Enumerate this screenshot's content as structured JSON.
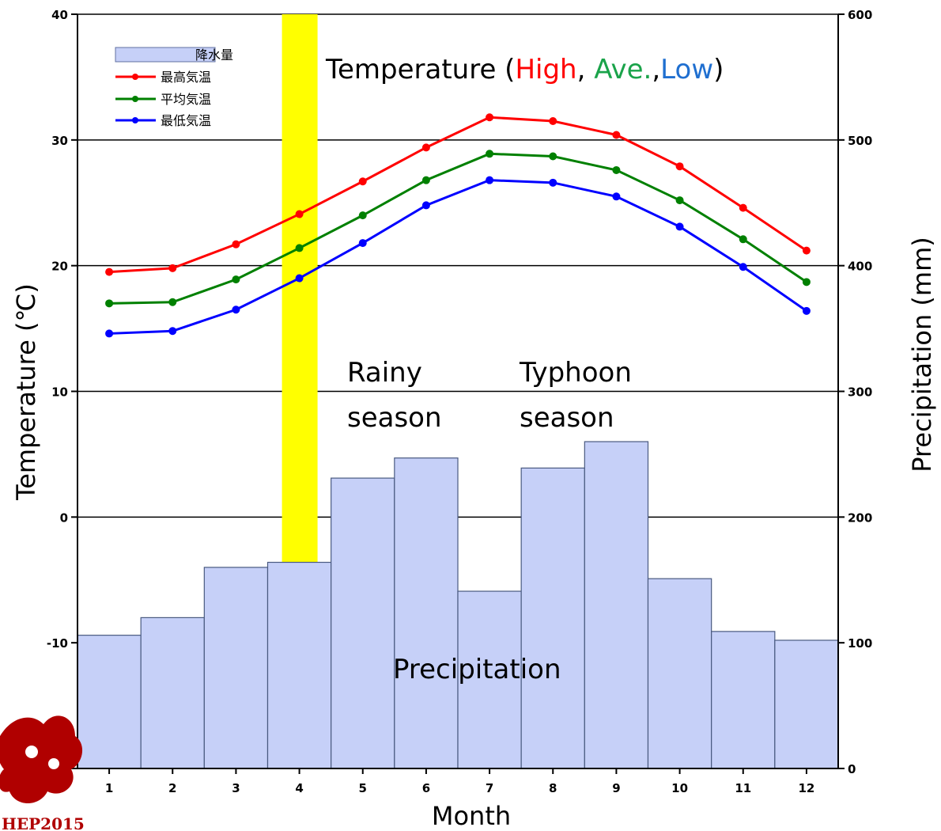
{
  "chart_data": {
    "type": "bar",
    "categories": [
      "1",
      "2",
      "3",
      "4",
      "5",
      "6",
      "7",
      "8",
      "9",
      "10",
      "11",
      "12"
    ],
    "xlabel": "Month",
    "ylabel_left": "Temperature (℃)",
    "ylabel_right": "Precipitation (mm)",
    "ylim_left": [
      -20,
      40
    ],
    "ylim_right": [
      0,
      600
    ],
    "left_ticks": [
      "40",
      "30",
      "20",
      "10",
      "0",
      "-10",
      "-20"
    ],
    "right_ticks": [
      "600",
      "500",
      "400",
      "300",
      "200",
      "100",
      "0"
    ],
    "grid": true,
    "precipitation": {
      "name": "降水量",
      "color": "#c6d0f8",
      "values": [
        106,
        120,
        160,
        164,
        231,
        247,
        141,
        239,
        260,
        151,
        109,
        102
      ]
    },
    "series": [
      {
        "name": "最高気温",
        "color": "#ff0000",
        "values": [
          19.5,
          19.8,
          21.7,
          24.1,
          26.7,
          29.4,
          31.8,
          31.5,
          30.4,
          27.9,
          24.6,
          21.2
        ]
      },
      {
        "name": "平均気温",
        "color": "#008000",
        "values": [
          17.0,
          17.1,
          18.9,
          21.4,
          24.0,
          26.8,
          28.9,
          28.7,
          27.6,
          25.2,
          22.1,
          18.7
        ]
      },
      {
        "name": "最低気温",
        "color": "#0000ff",
        "values": [
          14.6,
          14.8,
          16.5,
          19.0,
          21.8,
          24.8,
          26.8,
          26.6,
          25.5,
          23.1,
          19.9,
          16.4
        ]
      }
    ],
    "highlight": {
      "category": "4",
      "color": "#ffff00"
    },
    "annotations": {
      "temp_title": {
        "prefix": "Temperature (",
        "high": "High",
        "sep1": ", ",
        "ave": "Ave.",
        "sep2": ",",
        "low": "Low",
        "suffix": ")"
      },
      "rainy_line1": "Rainy",
      "rainy_line2": "season",
      "typhoon_line1": "Typhoon",
      "typhoon_line2": "season",
      "precip_label": "Precipitation"
    },
    "annotation_colors": {
      "high": "#ff0000",
      "ave": "#1aa34a",
      "low": "#1f6fd0"
    }
  },
  "logo": {
    "text": "HEP2015",
    "color": "#b00000"
  }
}
